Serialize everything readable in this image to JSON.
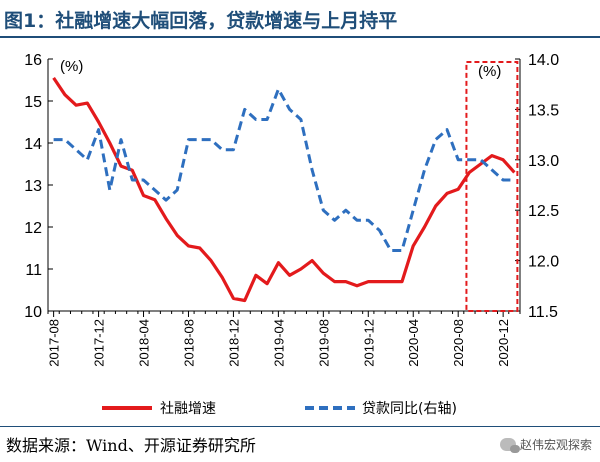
{
  "title": "图1：社融增速大幅回落，贷款增速与上月持平",
  "source": "数据来源：Wind、开源证券研究所",
  "watermark": "赵伟宏观探索",
  "colors": {
    "title": "#1f4e79",
    "social_financing": "#e31a1c",
    "loans": "#2e6fbf",
    "highlight_box": "#e31a1c"
  },
  "chart_data": {
    "type": "line",
    "left_unit": "(%)",
    "right_unit": "(%)",
    "ylim_left": [
      10,
      16
    ],
    "ylim_right": [
      11.5,
      14.0
    ],
    "yticks_left": [
      "10",
      "11",
      "12",
      "13",
      "14",
      "15",
      "16"
    ],
    "yticks_right": [
      "11.5",
      "12.0",
      "12.5",
      "13.0",
      "13.5",
      "14.0"
    ],
    "x_start": "2017-08",
    "xtick_labels": [
      "2017-08",
      "2017-12",
      "2018-04",
      "2018-08",
      "2018-12",
      "2019-04",
      "2019-08",
      "2019-12",
      "2020-04",
      "2020-08",
      "2020-12"
    ],
    "legend": [
      "社融增速",
      "贷款同比(右轴)"
    ],
    "series": [
      {
        "name": "社融增速",
        "axis": "left",
        "style": "solid",
        "values": [
          15.55,
          15.15,
          14.9,
          14.95,
          14.5,
          14.0,
          13.45,
          13.35,
          12.75,
          12.65,
          12.2,
          11.8,
          11.55,
          11.5,
          11.2,
          10.8,
          10.3,
          10.25,
          10.85,
          10.65,
          11.15,
          10.85,
          11.0,
          11.2,
          10.9,
          10.7,
          10.7,
          10.6,
          10.7,
          10.7,
          10.7,
          10.7,
          11.55,
          12.0,
          12.5,
          12.8,
          12.9,
          13.3,
          13.5,
          13.7,
          13.6,
          13.3
        ]
      },
      {
        "name": "贷款同比(右轴)",
        "axis": "right",
        "style": "dashed",
        "values": [
          13.2,
          13.2,
          13.1,
          13.0,
          13.3,
          12.7,
          13.2,
          12.8,
          12.8,
          12.7,
          12.6,
          12.7,
          13.2,
          13.2,
          13.2,
          13.1,
          13.1,
          13.5,
          13.4,
          13.4,
          13.7,
          13.5,
          13.4,
          12.9,
          12.5,
          12.4,
          12.5,
          12.4,
          12.4,
          12.3,
          12.1,
          12.1,
          12.5,
          12.9,
          13.2,
          13.3,
          13.0,
          13.0,
          13.0,
          12.9,
          12.8,
          12.8
        ]
      }
    ],
    "highlight": {
      "from": "2020-09",
      "to": "2021-01"
    }
  }
}
